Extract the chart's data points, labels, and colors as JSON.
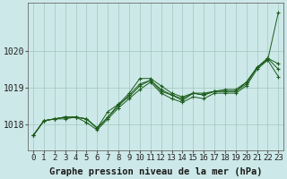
{
  "title": "Graphe pression niveau de la mer (hPa)",
  "background_color": "#cde8e8",
  "grid_color": "#a0c8c0",
  "line_color": "#1a5c1a",
  "x_ticks": [
    0,
    1,
    2,
    3,
    4,
    5,
    6,
    7,
    8,
    9,
    10,
    11,
    12,
    13,
    14,
    15,
    16,
    17,
    18,
    19,
    20,
    21,
    22,
    23
  ],
  "y_ticks": [
    1018,
    1019,
    1020
  ],
  "ylim": [
    1017.3,
    1021.3
  ],
  "series": [
    [
      1017.7,
      1018.1,
      1018.15,
      1018.15,
      1018.2,
      1018.15,
      1017.9,
      1018.2,
      1018.55,
      1018.85,
      1019.25,
      1019.25,
      1019.05,
      1018.85,
      1018.75,
      1018.85,
      1018.85,
      1018.9,
      1018.95,
      1018.95,
      1019.15,
      1019.55,
      1019.75,
      1021.05
    ],
    [
      1017.7,
      1018.1,
      1018.15,
      1018.2,
      1018.2,
      1018.15,
      1017.9,
      1018.35,
      1018.55,
      1018.75,
      1019.05,
      1019.2,
      1018.95,
      1018.8,
      1018.7,
      1018.85,
      1018.8,
      1018.9,
      1018.9,
      1018.9,
      1019.15,
      1019.55,
      1019.8,
      1019.65
    ],
    [
      1017.7,
      1018.1,
      1018.15,
      1018.2,
      1018.2,
      1018.15,
      1017.9,
      1018.2,
      1018.5,
      1018.8,
      1019.1,
      1019.2,
      1018.9,
      1018.8,
      1018.65,
      1018.85,
      1018.8,
      1018.9,
      1018.9,
      1018.9,
      1019.1,
      1019.55,
      1019.8,
      1019.5
    ],
    [
      1017.7,
      1018.1,
      1018.15,
      1018.2,
      1018.2,
      1018.05,
      1017.85,
      1018.15,
      1018.45,
      1018.7,
      1018.95,
      1019.15,
      1018.85,
      1018.7,
      1018.6,
      1018.75,
      1018.7,
      1018.85,
      1018.85,
      1018.85,
      1019.05,
      1019.5,
      1019.75,
      1019.3
    ]
  ],
  "xlabel_fontsize": 6.5,
  "ylabel_fontsize": 7,
  "title_fontsize": 7.5
}
